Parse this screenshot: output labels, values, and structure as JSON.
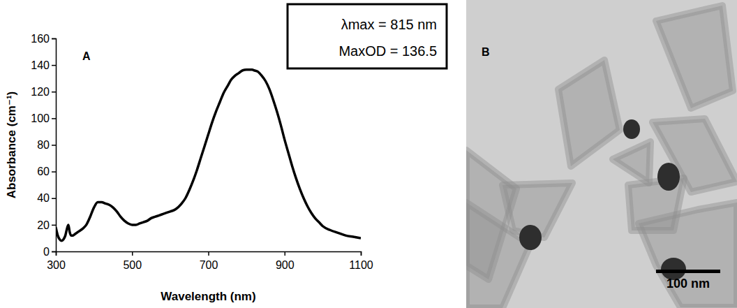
{
  "chart_data": {
    "type": "line",
    "x_label": "Wavelength (nm)",
    "y_label": "Absorbance (cm⁻¹)",
    "annotations": [
      "λmax = 815 nm",
      "MaxOD = 136.5"
    ],
    "x": [
      300,
      305,
      310,
      315,
      320,
      325,
      330,
      333,
      336,
      340,
      345,
      350,
      360,
      370,
      380,
      390,
      400,
      410,
      420,
      430,
      440,
      450,
      460,
      470,
      480,
      490,
      500,
      510,
      520,
      530,
      540,
      550,
      560,
      570,
      580,
      590,
      600,
      610,
      620,
      630,
      640,
      650,
      660,
      670,
      680,
      690,
      700,
      710,
      720,
      730,
      740,
      750,
      760,
      770,
      780,
      790,
      800,
      815,
      820,
      830,
      840,
      850,
      860,
      870,
      880,
      890,
      900,
      910,
      920,
      930,
      940,
      950,
      960,
      970,
      980,
      990,
      1000,
      1020,
      1040,
      1060,
      1080,
      1100
    ],
    "values": [
      18,
      12,
      9,
      8,
      9,
      12,
      18,
      20,
      15,
      12,
      12,
      13,
      15,
      17,
      20,
      26,
      33,
      37,
      37,
      36,
      35,
      33,
      30,
      26,
      23,
      21,
      20,
      20,
      21,
      22,
      23,
      25,
      26,
      27,
      28,
      29,
      30,
      31,
      33,
      36,
      40,
      46,
      53,
      61,
      70,
      79,
      88,
      97,
      105,
      112,
      119,
      124,
      129,
      132,
      134,
      136,
      136.5,
      136.5,
      136,
      135,
      132,
      128,
      122,
      114,
      105,
      95,
      84,
      74,
      64,
      55,
      47,
      40,
      34,
      29,
      25,
      22,
      19,
      16,
      14,
      12,
      11,
      10
    ],
    "color": "#000000",
    "xlim": [
      300,
      1100
    ],
    "xticks": [
      300,
      500,
      700,
      900,
      1100
    ],
    "ylim": [
      0,
      160
    ],
    "yticks": [
      0,
      20,
      40,
      60,
      80,
      100,
      120,
      140,
      160
    ],
    "grid": false
  },
  "panel_labels": [
    "A",
    "B"
  ],
  "image": {
    "scale_bar": "100 nm"
  }
}
